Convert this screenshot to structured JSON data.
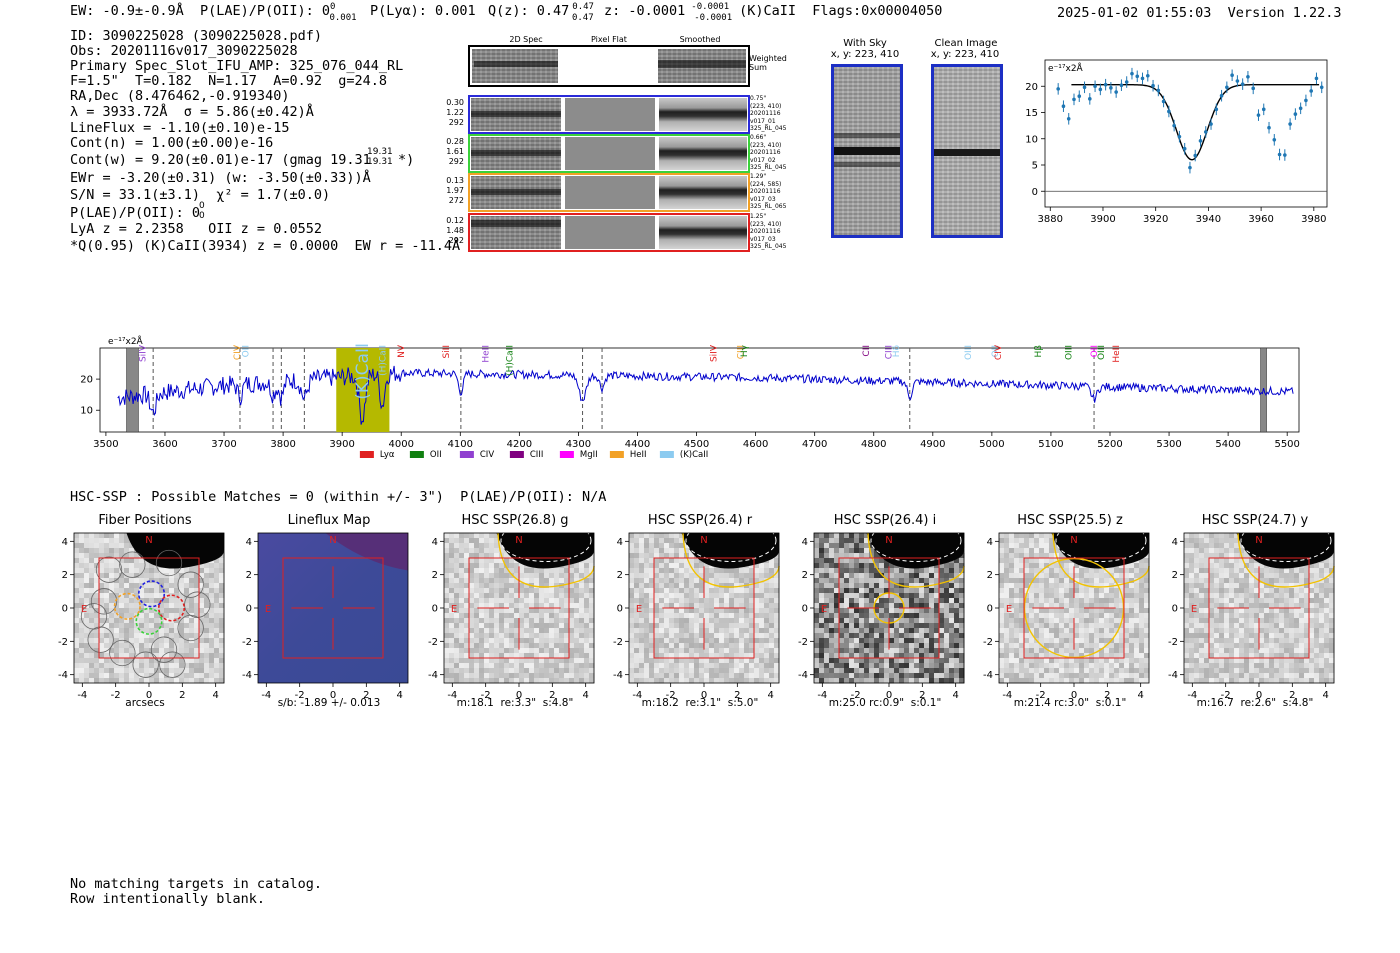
{
  "header": {
    "ew": "EW: -0.9±-0.9Å",
    "plae_label": "P(LAE)/P(OII): 0",
    "plae_sup": "0",
    "plae_sub": "0.001",
    "plya": "P(Lyα): 0.001",
    "qz": "Q(z): 0.47",
    "qz_sup": "0.47",
    "qz_sub": "0.47",
    "z": "z: -0.0001",
    "z_sup": "-0.0001",
    "z_sub": "-0.0001",
    "z_tail": "(K)CaII  Flags:0x00004050",
    "datetime": "2025-01-02 01:55:03  Version 1.22.3"
  },
  "info": {
    "lines": [
      "ID: 3090225028 (3090225028.pdf)",
      "Obs: 20201116v017_3090225028",
      "Primary Spec_Slot_IFU_AMP: 325_076_044_RL",
      "F=1.5\"  T=0.182  N=1.17  A=0.92  g=24.8",
      "RA,Dec (8.476462,-0.919340)",
      "λ = 3933.72Å  σ = 5.86(±0.42)Å",
      "LineFlux = -1.10(±0.10)e-15",
      "Cont(n) = 1.00(±0.00)e-16",
      "Cont(w) = 9.20(±0.01)e-17 (gmag 19.31",
      "EWr = -3.20(±0.31) (w: -3.50(±0.33))Å",
      "S/N = 33.1(±3.1)  χ² = 1.7(±0.0)",
      "P(LAE)/P(OII): 0",
      "LyA z = 2.2358   OII z = 0.0552",
      "*Q(0.95) (K)CaII(3934) z = 0.0000  EW r = -11.4Å"
    ],
    "gmag_sup": "19.31",
    "gmag_sub": "19.31",
    "gmag_tail": "*)",
    "plae_sup": "0",
    "plae_sub": "0"
  },
  "cutouts": {
    "col_headers": [
      "2D Spec",
      "Pixel Flat",
      "Smoothed"
    ],
    "weighted_sum": "Weighted\nSum",
    "rows": [
      {
        "left": [
          "0.30",
          "1.22",
          "292"
        ],
        "right": [
          "0.75\"",
          "(223, 410)",
          "20201116",
          "v017_01",
          "325_RL_045"
        ],
        "color": "#2a2ad8"
      },
      {
        "left": [
          "0.28",
          "1.61",
          "292"
        ],
        "right": [
          "0.66\"",
          "(223, 410)",
          "20201116",
          "v017_02",
          "325_RL_045"
        ],
        "color": "#3bd13b"
      },
      {
        "left": [
          "0.13",
          "1.97",
          "272"
        ],
        "right": [
          "1.29\"",
          "(224, 585)",
          "20201116",
          "v017_03",
          "325_RL_065"
        ],
        "color": "#f2a126"
      },
      {
        "left": [
          "0.12",
          "1.48",
          "292"
        ],
        "right": [
          "1.25\"",
          "(223, 410)",
          "20201116",
          "v017_03",
          "325_RL_045"
        ],
        "color": "#e02020"
      }
    ]
  },
  "sky": {
    "with_sky_title": "With Sky",
    "with_sky_xy": "x, y: 223, 410",
    "clean_title": "Clean Image",
    "clean_xy": "x, y: 223, 410"
  },
  "chart_data": [
    {
      "type": "scatter",
      "ylabel": "e⁻¹⁷x2Å",
      "xlim": [
        3878,
        3985
      ],
      "ylim": [
        -3,
        25
      ],
      "xticks": [
        3880,
        3900,
        3920,
        3940,
        3960,
        3980
      ],
      "yticks": [
        0,
        5,
        10,
        15,
        20
      ],
      "points_x": [
        3883,
        3885,
        3887,
        3889,
        3891,
        3893,
        3895,
        3897,
        3899,
        3901,
        3903,
        3905,
        3907,
        3909,
        3911,
        3913,
        3915,
        3917,
        3919,
        3921,
        3923,
        3925,
        3927,
        3929,
        3931,
        3933,
        3935,
        3937,
        3939,
        3941,
        3943,
        3945,
        3947,
        3949,
        3951,
        3953,
        3955,
        3957,
        3959,
        3961,
        3963,
        3965,
        3967,
        3969,
        3971,
        3973,
        3975,
        3977,
        3979,
        3981,
        3983
      ],
      "points_y": [
        19.5,
        16.2,
        13.8,
        17.5,
        18.1,
        19.8,
        17.6,
        20.0,
        19.4,
        20.3,
        19.7,
        18.9,
        20.2,
        20.8,
        22.4,
        21.9,
        21.5,
        22.0,
        20.1,
        19.2,
        17.1,
        15.2,
        12.5,
        10.4,
        8.1,
        4.5,
        6.8,
        9.6,
        11.3,
        12.8,
        15.6,
        18.2,
        19.8,
        22.1,
        21.0,
        20.4,
        21.8,
        19.6,
        14.5,
        15.6,
        12.1,
        9.8,
        7.0,
        6.9,
        12.8,
        14.7,
        15.8,
        17.3,
        19.1,
        21.5,
        19.8
      ],
      "fit_x": [
        3888,
        3982
      ],
      "fit_center": 3933.72,
      "fit_sigma": 5.86,
      "fit_continuum": 20.3,
      "fit_depth": 14.3,
      "point_color": "#1f77b4",
      "fit_color": "#000000"
    },
    {
      "type": "line",
      "ylabel": "e⁻¹⁷x2Å",
      "xlim": [
        3490,
        5520
      ],
      "ylim": [
        3,
        30
      ],
      "xticks": [
        3500,
        3600,
        3700,
        3800,
        3900,
        4000,
        4100,
        4200,
        4300,
        4400,
        4500,
        4600,
        4700,
        4800,
        4900,
        5000,
        5100,
        5200,
        5300,
        5400,
        5500
      ],
      "yticks": [
        10,
        20
      ],
      "series_color": "#0000cc",
      "highlight_range": [
        3890,
        3980
      ],
      "highlight_color": "#b5b900",
      "masked_ranges": [
        [
          3535,
          3555
        ],
        [
          5455,
          5465
        ]
      ],
      "dashed_lines": [
        3580,
        3727,
        3783,
        3797,
        3836,
        4101,
        4307,
        4340,
        4861,
        5173
      ],
      "line_labels": [
        {
          "text": "SiIV",
          "x": 3562,
          "color": "#9040d0"
        },
        {
          "text": "CIV",
          "x": 3722,
          "color": "#f2a126"
        },
        {
          "text": "OII",
          "x": 3736,
          "color": "#8ccbf0"
        },
        {
          "text": "(K)CaII",
          "x": 3934,
          "color": "#8ccbf0",
          "big": true
        },
        {
          "text": "(H)CaII",
          "x": 3968,
          "color": "#8ccbf0"
        },
        {
          "text": "NV",
          "x": 4000,
          "color": "#e02020"
        },
        {
          "text": "SiII",
          "x": 4076,
          "color": "#e02020"
        },
        {
          "text": "HeII",
          "x": 4143,
          "color": "#9040d0"
        },
        {
          "text": "(H)CaII",
          "x": 4183,
          "color": "#108010"
        },
        {
          "text": "SiIV",
          "x": 4529,
          "color": "#e02020"
        },
        {
          "text": "CIII",
          "x": 4574,
          "color": "#f2a126"
        },
        {
          "text": "Hγ",
          "x": 4580,
          "color": "#108010"
        },
        {
          "text": "CII",
          "x": 4787,
          "color": "#800080"
        },
        {
          "text": "CIII",
          "x": 4825,
          "color": "#9040d0"
        },
        {
          "text": "Hδ",
          "x": 4838,
          "color": "#8ccbf0"
        },
        {
          "text": "OIII",
          "x": 4960,
          "color": "#8ccbf0"
        },
        {
          "text": "OII",
          "x": 5005,
          "color": "#8ccbf0"
        },
        {
          "text": "CIV",
          "x": 5010,
          "color": "#e02020"
        },
        {
          "text": "Hβ",
          "x": 5078,
          "color": "#108010"
        },
        {
          "text": "OIII",
          "x": 5130,
          "color": "#108010"
        },
        {
          "text": "OII",
          "x": 5173,
          "color": "#ff00ff"
        },
        {
          "text": "OIII",
          "x": 5185,
          "color": "#108010"
        },
        {
          "text": "HeII",
          "x": 5210,
          "color": "#e02020"
        }
      ],
      "legend": [
        {
          "label": "Lyα",
          "color": "#e02020"
        },
        {
          "label": "OII",
          "color": "#108010"
        },
        {
          "label": "CIV",
          "color": "#9040d0"
        },
        {
          "label": "CIII",
          "color": "#800080"
        },
        {
          "label": "MgII",
          "color": "#ff00ff"
        },
        {
          "label": "HeII",
          "color": "#f2a126"
        },
        {
          "label": "(K)CaII",
          "color": "#8ccbf0"
        }
      ]
    }
  ],
  "hsc": {
    "summary": "HSC-SSP : Possible Matches = 0 (within +/- 3\")  P(LAE)/P(OII): N/A",
    "panels": [
      {
        "title": "Fiber Positions",
        "caption": "arcsecs",
        "kind": "fiber"
      },
      {
        "title": "Lineflux Map",
        "caption": "s/b: -1.89 +/- 0.013",
        "kind": "lineflux"
      },
      {
        "title": "HSC SSP(26.8) g",
        "caption": "m:18.1  re:3.3\"  s:4.8\"",
        "kind": "hsc"
      },
      {
        "title": "HSC SSP(26.4) r",
        "caption": "m:18.2  re:3.1\"  s:5.0\"",
        "kind": "hsc"
      },
      {
        "title": "HSC SSP(26.4) i",
        "caption": "m:25.0 rc:0.9\"  s:0.1\"",
        "kind": "hsc_i"
      },
      {
        "title": "HSC SSP(25.5) z",
        "caption": "m:21.4 rc:3.0\"  s:0.1\"",
        "kind": "hsc_z"
      },
      {
        "title": "HSC SSP(24.7) y",
        "caption": "m:16.7  re:2.6\"  s:4.8\"",
        "kind": "hsc"
      }
    ],
    "axis_ticks": [
      "-4",
      "-2",
      "0",
      "2",
      "4"
    ],
    "north": "N",
    "east": "E"
  },
  "footer": {
    "line1": "No matching targets in catalog.",
    "line2": "Row intentionally blank."
  }
}
